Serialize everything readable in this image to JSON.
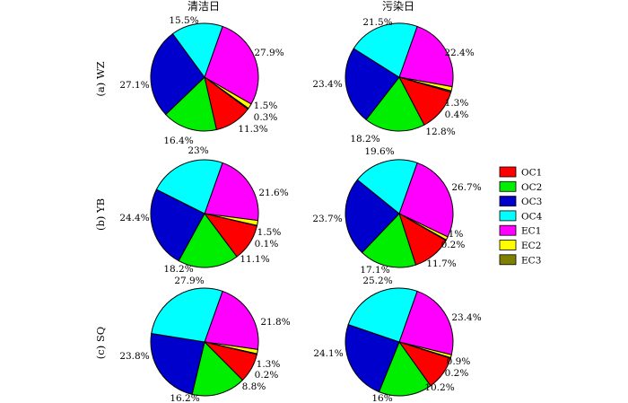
{
  "chart_data": {
    "type": "pie",
    "column_titles": [
      "清洁日",
      "污染日"
    ],
    "row_labels": [
      "(a) WZ",
      "(b) YB",
      "(c) SQ"
    ],
    "legend_position": "right",
    "categories": [
      "OC1",
      "OC2",
      "OC3",
      "OC4",
      "EC1",
      "EC2",
      "EC3"
    ],
    "colors": [
      "#ff0000",
      "#00ee00",
      "#0000cc",
      "#00ffff",
      "#ff00ff",
      "#ffff00",
      "#808000"
    ],
    "legend": [
      {
        "label": "OC1",
        "color": "#ff0000"
      },
      {
        "label": "OC2",
        "color": "#00ee00"
      },
      {
        "label": "OC3",
        "color": "#0000cc"
      },
      {
        "label": "OC4",
        "color": "#00ffff"
      },
      {
        "label": "EC1",
        "color": "#ff00ff"
      },
      {
        "label": "EC2",
        "color": "#ffff00"
      },
      {
        "label": "EC3",
        "color": "#808000"
      }
    ],
    "pies": [
      {
        "row": "(a) WZ",
        "column": "清洁日",
        "slices": [
          {
            "category": "EC1",
            "value": 27.9,
            "label": "27.9%"
          },
          {
            "category": "EC2",
            "value": 1.5,
            "label": "1.5%"
          },
          {
            "category": "EC3",
            "value": 0.3,
            "label": "0.3%"
          },
          {
            "category": "OC1",
            "value": 11.3,
            "label": "11.3%"
          },
          {
            "category": "OC2",
            "value": 16.4,
            "label": "16.4%"
          },
          {
            "category": "OC3",
            "value": 27.1,
            "label": "27.1%"
          },
          {
            "category": "OC4",
            "value": 15.5,
            "label": "15.5%"
          }
        ]
      },
      {
        "row": "(a) WZ",
        "column": "污染日",
        "slices": [
          {
            "category": "EC1",
            "value": 22.4,
            "label": "22.4%"
          },
          {
            "category": "EC2",
            "value": 1.3,
            "label": "1.3%"
          },
          {
            "category": "EC3",
            "value": 0.4,
            "label": "0.4%"
          },
          {
            "category": "OC1",
            "value": 12.8,
            "label": "12.8%"
          },
          {
            "category": "OC2",
            "value": 18.2,
            "label": "18.2%"
          },
          {
            "category": "OC3",
            "value": 23.4,
            "label": "23.4%"
          },
          {
            "category": "OC4",
            "value": 21.5,
            "label": "21.5%"
          }
        ]
      },
      {
        "row": "(b) YB",
        "column": "清洁日",
        "slices": [
          {
            "category": "EC1",
            "value": 21.6,
            "label": "21.6%"
          },
          {
            "category": "EC2",
            "value": 1.5,
            "label": "1.5%"
          },
          {
            "category": "EC3",
            "value": 0.1,
            "label": "0.1%"
          },
          {
            "category": "OC1",
            "value": 11.1,
            "label": "11.1%"
          },
          {
            "category": "OC2",
            "value": 18.2,
            "label": "18.2%"
          },
          {
            "category": "OC3",
            "value": 24.4,
            "label": "24.4%"
          },
          {
            "category": "OC4",
            "value": 23,
            "label": "23%"
          }
        ]
      },
      {
        "row": "(b) YB",
        "column": "污染日",
        "slices": [
          {
            "category": "EC1",
            "value": 26.7,
            "label": "26.7%"
          },
          {
            "category": "EC2",
            "value": 1,
            "label": "1%"
          },
          {
            "category": "EC3",
            "value": 0.2,
            "label": "0.2%"
          },
          {
            "category": "OC1",
            "value": 11.7,
            "label": "11.7%"
          },
          {
            "category": "OC2",
            "value": 17.1,
            "label": "17.1%"
          },
          {
            "category": "OC3",
            "value": 23.7,
            "label": "23.7%"
          },
          {
            "category": "OC4",
            "value": 19.6,
            "label": "19.6%"
          }
        ]
      },
      {
        "row": "(c) SQ",
        "column": "清洁日",
        "slices": [
          {
            "category": "EC1",
            "value": 21.8,
            "label": "21.8%"
          },
          {
            "category": "EC2",
            "value": 1.3,
            "label": "1.3%"
          },
          {
            "category": "EC3",
            "value": 0.2,
            "label": "0.2%"
          },
          {
            "category": "OC1",
            "value": 8.8,
            "label": "8.8%"
          },
          {
            "category": "OC2",
            "value": 16.2,
            "label": "16.2%"
          },
          {
            "category": "OC3",
            "value": 23.8,
            "label": "23.8%"
          },
          {
            "category": "OC4",
            "value": 27.9,
            "label": "27.9%"
          }
        ]
      },
      {
        "row": "(c) SQ",
        "column": "污染日",
        "slices": [
          {
            "category": "EC1",
            "value": 23.4,
            "label": "23.4%"
          },
          {
            "category": "EC2",
            "value": 0.9,
            "label": "0.9%"
          },
          {
            "category": "EC3",
            "value": 0.2,
            "label": "0.2%"
          },
          {
            "category": "OC1",
            "value": 10.2,
            "label": "10.2%"
          },
          {
            "category": "OC2",
            "value": 16,
            "label": "16%"
          },
          {
            "category": "OC3",
            "value": 24.1,
            "label": "24.1%"
          },
          {
            "category": "OC4",
            "value": 25.2,
            "label": "25.2%"
          }
        ]
      }
    ]
  }
}
